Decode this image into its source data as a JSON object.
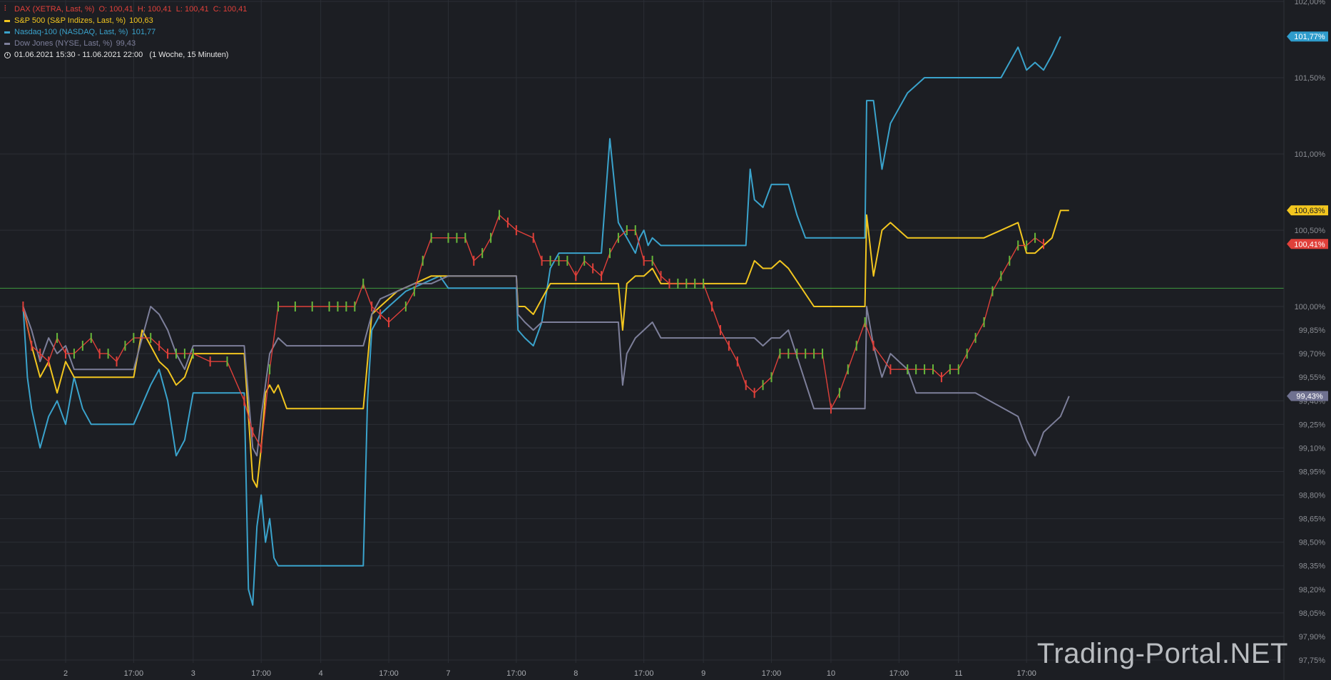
{
  "legend": {
    "dax": {
      "label": "DAX (XETRA, Last, %)",
      "ohlc": "O: 100,41  H: 100,41  L: 100,41  C: 100,41",
      "color": "#e0403a"
    },
    "sp500": {
      "label": "S&P 500 (S&P Indizes, Last, %)",
      "value": "100,63",
      "color": "#f2c61f"
    },
    "nasdaq": {
      "label": "Nasdaq-100 (NASDAQ, Last, %)",
      "value": "101,77",
      "color": "#3aa3cc"
    },
    "dow": {
      "label": "Dow Jones (NYSE, Last, %)",
      "value": "99,43",
      "color": "#7d7f9a"
    },
    "period": "01.06.2021 15:30 - 11.06.2021 22:00   (1 Woche, 15 Minuten)"
  },
  "watermark": "Trading-Portal.NET",
  "chart_data": {
    "type": "line",
    "ylim": [
      97.7,
      102.0
    ],
    "y_ticks": [
      "97,75%",
      "97,90%",
      "98,05%",
      "98,20%",
      "98,35%",
      "98,50%",
      "98,65%",
      "98,80%",
      "98,95%",
      "99,10%",
      "99,25%",
      "99,40%",
      "99,55%",
      "99,70%",
      "99,85%",
      "100,00%",
      "100,50%",
      "101,00%",
      "101,50%",
      "102,00%"
    ],
    "y_tick_values": [
      97.75,
      97.9,
      98.05,
      98.2,
      98.35,
      98.5,
      98.65,
      98.8,
      98.95,
      99.1,
      99.25,
      99.4,
      99.55,
      99.7,
      99.85,
      100.0,
      100.5,
      101.0,
      101.5,
      102.0
    ],
    "x_ticks": [
      "2",
      "17:00",
      "3",
      "17:00",
      "4",
      "17:00",
      "7",
      "17:00",
      "8",
      "17:00",
      "9",
      "17:00",
      "10",
      "17:00",
      "11",
      "17:00"
    ],
    "x_tick_values": [
      0.5,
      1.3,
      2.0,
      2.8,
      3.5,
      4.3,
      5.0,
      5.8,
      6.5,
      7.3,
      8.0,
      8.8,
      9.5,
      10.3,
      11.0,
      11.8
    ],
    "x_range": [
      0,
      13.5
    ],
    "reference_line": 100.12,
    "last_labels": [
      {
        "series": "Nasdaq-100",
        "text": "101,77%",
        "value": 101.77,
        "color": "#2f9ccc"
      },
      {
        "series": "S&P 500",
        "text": "100,63%",
        "value": 100.63,
        "color": "#f2c61f"
      },
      {
        "series": "DAX",
        "text": "100,41%",
        "value": 100.41,
        "color": "#e0403a"
      },
      {
        "series": "Dow Jones",
        "text": "99,43%",
        "value": 99.43,
        "color": "#6f7190"
      }
    ],
    "series": [
      {
        "name": "Nasdaq-100",
        "color": "#3aa3cc",
        "x": [
          0,
          0.05,
          0.1,
          0.2,
          0.3,
          0.4,
          0.5,
          0.6,
          0.7,
          0.8,
          1.0,
          1.3,
          1.5,
          1.6,
          1.7,
          1.8,
          1.9,
          2.0,
          2.2,
          2.4,
          2.6,
          2.65,
          2.7,
          2.75,
          2.8,
          2.85,
          2.9,
          2.95,
          3.0,
          3.1,
          3.2,
          3.3,
          3.4,
          3.5,
          3.8,
          4.0,
          4.05,
          4.1,
          4.2,
          4.3,
          4.5,
          4.7,
          4.9,
          5.0,
          5.5,
          5.8,
          5.82,
          5.9,
          6.0,
          6.1,
          6.2,
          6.3,
          6.35,
          6.4,
          6.8,
          6.9,
          7.0,
          7.2,
          7.25,
          7.3,
          7.35,
          7.4,
          7.5,
          7.6,
          7.7,
          7.8,
          7.9,
          8.0,
          8.3,
          8.5,
          8.55,
          8.6,
          8.7,
          8.8,
          8.9,
          9.0,
          9.1,
          9.2,
          9.3,
          9.4,
          9.5,
          9.9,
          9.92,
          10.0,
          10.1,
          10.2,
          10.3,
          10.4,
          10.5,
          10.6,
          10.7,
          10.8,
          10.9,
          11.0,
          11.2,
          11.5,
          11.7,
          11.8,
          11.9,
          12.0,
          12.1,
          12.2
        ],
        "y": [
          100.0,
          99.55,
          99.35,
          99.1,
          99.3,
          99.4,
          99.25,
          99.55,
          99.35,
          99.25,
          99.25,
          99.25,
          99.5,
          99.6,
          99.4,
          99.05,
          99.15,
          99.45,
          99.45,
          99.45,
          99.45,
          98.2,
          98.1,
          98.6,
          98.8,
          98.5,
          98.65,
          98.4,
          98.35,
          98.35,
          98.35,
          98.35,
          98.35,
          98.35,
          98.35,
          98.35,
          99.4,
          99.85,
          99.95,
          100.0,
          100.1,
          100.15,
          100.2,
          100.12,
          100.12,
          100.12,
          99.85,
          99.8,
          99.75,
          99.9,
          100.25,
          100.35,
          100.35,
          100.35,
          100.35,
          101.1,
          100.55,
          100.35,
          100.45,
          100.5,
          100.4,
          100.45,
          100.4,
          100.4,
          100.4,
          100.4,
          100.4,
          100.4,
          100.4,
          100.4,
          100.9,
          100.7,
          100.65,
          100.8,
          100.8,
          100.8,
          100.6,
          100.45,
          100.45,
          100.45,
          100.45,
          100.45,
          101.35,
          101.35,
          100.9,
          101.2,
          101.3,
          101.4,
          101.45,
          101.5,
          101.5,
          101.5,
          101.5,
          101.5,
          101.5,
          101.5,
          101.7,
          101.55,
          101.6,
          101.55,
          101.65,
          101.77
        ]
      },
      {
        "name": "S&P 500",
        "color": "#f2c61f",
        "x": [
          0,
          0.1,
          0.2,
          0.3,
          0.4,
          0.5,
          0.6,
          0.8,
          1.0,
          1.3,
          1.4,
          1.5,
          1.6,
          1.7,
          1.8,
          1.9,
          2.0,
          2.2,
          2.4,
          2.6,
          2.7,
          2.75,
          2.8,
          2.85,
          2.9,
          2.95,
          3.0,
          3.1,
          3.2,
          3.3,
          3.5,
          3.8,
          4.0,
          4.1,
          4.2,
          4.4,
          4.6,
          4.8,
          5.0,
          5.4,
          5.8,
          5.82,
          5.9,
          6.0,
          6.1,
          6.2,
          6.3,
          6.4,
          6.8,
          6.9,
          7.0,
          7.05,
          7.1,
          7.2,
          7.3,
          7.4,
          7.5,
          8.0,
          8.5,
          8.6,
          8.7,
          8.8,
          8.9,
          9.0,
          9.3,
          9.4,
          9.5,
          9.9,
          9.92,
          10.0,
          10.1,
          10.2,
          10.3,
          10.4,
          10.5,
          10.6,
          10.7,
          10.8,
          10.9,
          11.0,
          11.3,
          11.7,
          11.8,
          11.9,
          12.0,
          12.1,
          12.2,
          12.3
        ],
        "y": [
          100.0,
          99.75,
          99.55,
          99.65,
          99.45,
          99.65,
          99.55,
          99.55,
          99.55,
          99.55,
          99.85,
          99.75,
          99.65,
          99.6,
          99.5,
          99.55,
          99.7,
          99.7,
          99.7,
          99.7,
          98.9,
          98.85,
          99.1,
          99.45,
          99.5,
          99.45,
          99.5,
          99.35,
          99.35,
          99.35,
          99.35,
          99.35,
          99.35,
          99.95,
          100.0,
          100.1,
          100.15,
          100.2,
          100.2,
          100.2,
          100.2,
          100.0,
          100.0,
          99.95,
          100.05,
          100.15,
          100.15,
          100.15,
          100.15,
          100.15,
          100.15,
          99.85,
          100.15,
          100.2,
          100.2,
          100.25,
          100.15,
          100.15,
          100.15,
          100.3,
          100.25,
          100.25,
          100.3,
          100.25,
          100.0,
          100.0,
          100.0,
          100.0,
          100.6,
          100.2,
          100.5,
          100.55,
          100.5,
          100.45,
          100.45,
          100.45,
          100.45,
          100.45,
          100.45,
          100.45,
          100.45,
          100.55,
          100.35,
          100.35,
          100.4,
          100.45,
          100.63,
          100.63
        ]
      },
      {
        "name": "Dow Jones",
        "color": "#7d7f9a",
        "x": [
          0,
          0.1,
          0.2,
          0.3,
          0.4,
          0.5,
          0.6,
          0.8,
          1.0,
          1.3,
          1.5,
          1.6,
          1.7,
          1.8,
          1.9,
          2.0,
          2.2,
          2.4,
          2.6,
          2.7,
          2.75,
          2.8,
          2.9,
          3.0,
          3.1,
          3.2,
          3.3,
          3.5,
          3.8,
          4.0,
          4.1,
          4.2,
          4.4,
          4.6,
          4.8,
          5.0,
          5.4,
          5.8,
          5.82,
          5.9,
          6.0,
          6.1,
          6.3,
          6.4,
          6.8,
          6.9,
          7.0,
          7.05,
          7.1,
          7.2,
          7.3,
          7.4,
          7.5,
          7.6,
          7.7,
          7.8,
          8.0,
          8.5,
          8.6,
          8.7,
          8.8,
          8.9,
          9.0,
          9.3,
          9.4,
          9.5,
          9.9,
          9.92,
          10.0,
          10.1,
          10.2,
          10.3,
          10.4,
          10.5,
          10.6,
          10.7,
          10.8,
          10.9,
          11.0,
          11.2,
          11.7,
          11.8,
          11.9,
          12.0,
          12.1,
          12.2,
          12.3
        ],
        "y": [
          100.0,
          99.85,
          99.65,
          99.8,
          99.7,
          99.75,
          99.6,
          99.6,
          99.6,
          99.6,
          100.0,
          99.95,
          99.85,
          99.7,
          99.6,
          99.75,
          99.75,
          99.75,
          99.75,
          99.1,
          99.05,
          99.3,
          99.7,
          99.8,
          99.75,
          99.75,
          99.75,
          99.75,
          99.75,
          99.75,
          99.95,
          100.05,
          100.1,
          100.15,
          100.15,
          100.2,
          100.2,
          100.2,
          99.95,
          99.9,
          99.85,
          99.9,
          99.9,
          99.9,
          99.9,
          99.9,
          99.9,
          99.5,
          99.7,
          99.8,
          99.85,
          99.9,
          99.8,
          99.8,
          99.8,
          99.8,
          99.8,
          99.8,
          99.8,
          99.75,
          99.8,
          99.8,
          99.85,
          99.35,
          99.35,
          99.35,
          99.35,
          100.0,
          99.75,
          99.55,
          99.7,
          99.65,
          99.6,
          99.45,
          99.45,
          99.45,
          99.45,
          99.45,
          99.45,
          99.45,
          99.3,
          99.15,
          99.05,
          99.2,
          99.25,
          99.3,
          99.43
        ]
      },
      {
        "name": "DAX",
        "color": "#e0403a",
        "x": [
          0,
          0.1,
          0.2,
          0.3,
          0.4,
          0.5,
          0.6,
          0.7,
          0.8,
          0.9,
          1.0,
          1.1,
          1.2,
          1.3,
          1.5,
          1.6,
          1.7,
          1.8,
          1.9,
          2.0,
          2.2,
          2.4,
          2.6,
          2.7,
          2.8,
          2.9,
          3.0,
          3.2,
          3.4,
          3.6,
          3.7,
          3.8,
          3.9,
          4.0,
          4.1,
          4.2,
          4.3,
          4.5,
          4.6,
          4.7,
          4.8,
          5.0,
          5.1,
          5.2,
          5.3,
          5.4,
          5.5,
          5.6,
          5.7,
          5.8,
          6.0,
          6.1,
          6.2,
          6.3,
          6.4,
          6.5,
          6.6,
          6.7,
          6.8,
          6.9,
          7.0,
          7.1,
          7.2,
          7.3,
          7.4,
          7.5,
          7.6,
          7.7,
          7.8,
          7.9,
          8.0,
          8.1,
          8.2,
          8.3,
          8.4,
          8.5,
          8.6,
          8.7,
          8.8,
          8.9,
          9.0,
          9.1,
          9.2,
          9.3,
          9.4,
          9.5,
          9.6,
          9.7,
          9.8,
          9.9,
          10.0,
          10.2,
          10.4,
          10.5,
          10.6,
          10.7,
          10.8,
          10.9,
          11.0,
          11.1,
          11.2,
          11.3,
          11.4,
          11.5,
          11.6,
          11.7,
          11.8,
          11.9,
          12.0
        ],
        "y": [
          100.0,
          99.75,
          99.7,
          99.65,
          99.8,
          99.7,
          99.7,
          99.75,
          99.8,
          99.7,
          99.7,
          99.65,
          99.75,
          99.8,
          99.8,
          99.75,
          99.7,
          99.7,
          99.7,
          99.7,
          99.65,
          99.65,
          99.4,
          99.2,
          99.1,
          99.6,
          100.0,
          100.0,
          100.0,
          100.0,
          100.0,
          100.0,
          100.0,
          100.15,
          100.0,
          99.95,
          99.9,
          100.0,
          100.1,
          100.3,
          100.45,
          100.45,
          100.45,
          100.45,
          100.3,
          100.35,
          100.45,
          100.6,
          100.55,
          100.5,
          100.45,
          100.3,
          100.3,
          100.3,
          100.3,
          100.2,
          100.3,
          100.25,
          100.2,
          100.35,
          100.45,
          100.5,
          100.5,
          100.3,
          100.3,
          100.2,
          100.15,
          100.15,
          100.15,
          100.15,
          100.15,
          100.0,
          99.85,
          99.75,
          99.65,
          99.5,
          99.45,
          99.5,
          99.55,
          99.7,
          99.7,
          99.7,
          99.7,
          99.7,
          99.7,
          99.35,
          99.45,
          99.6,
          99.75,
          99.9,
          99.75,
          99.6,
          99.6,
          99.6,
          99.6,
          99.6,
          99.55,
          99.6,
          99.6,
          99.7,
          99.8,
          99.9,
          100.1,
          100.2,
          100.3,
          100.4,
          100.4,
          100.45,
          100.41
        ]
      }
    ]
  }
}
